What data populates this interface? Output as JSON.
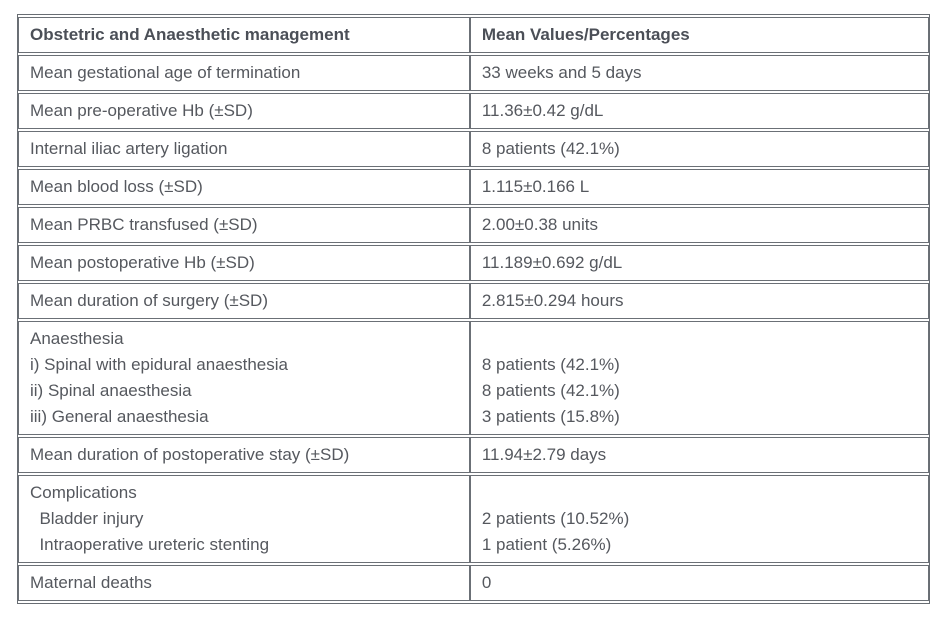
{
  "table": {
    "headers": [
      {
        "label": "Obstetric and Anaesthetic management"
      },
      {
        "label": "Mean Values/Percentages"
      }
    ],
    "rows": [
      {
        "label": "Mean gestational age of termination",
        "value": "33 weeks and 5 days"
      },
      {
        "label": "Mean pre-operative Hb (±SD)",
        "value": "11.36±0.42 g/dL"
      },
      {
        "label": "Internal iliac artery ligation",
        "value": "8 patients (42.1%)"
      },
      {
        "label": "Mean blood loss (±SD)",
        "value": "1.115±0.166 L"
      },
      {
        "label": "Mean PRBC transfused (±SD)",
        "value": "2.00±0.38 units"
      },
      {
        "label": "Mean postoperative Hb (±SD)",
        "value": "11.189±0.692 g/dL"
      },
      {
        "label": "Mean duration of surgery (±SD)",
        "value": "2.815±0.294 hours"
      },
      {
        "label": "Anaesthesia\ni) Spinal with epidural anaesthesia\nii) Spinal anaesthesia\niii) General anaesthesia",
        "value": "\n8 patients (42.1%)\n8 patients (42.1%)\n3 patients (15.8%)"
      },
      {
        "label": "Mean duration of postoperative stay (±SD)",
        "value": "11.94±2.79 days"
      },
      {
        "label": "Complications\n  Bladder injury\n  Intraoperative ureteric stenting",
        "value": "\n2 patients (10.52%)\n1 patient (5.26%)"
      },
      {
        "label": "Maternal deaths",
        "value": "0"
      }
    ],
    "colors": {
      "border": "#6b7076",
      "text": "#55585e",
      "header_text": "#4b4f57",
      "background": "#ffffff"
    }
  }
}
